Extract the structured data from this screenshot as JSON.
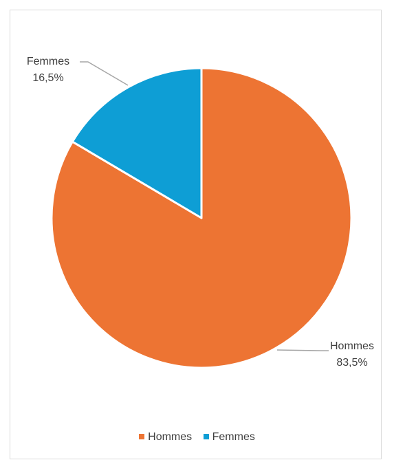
{
  "chart_data": {
    "type": "pie",
    "title": "",
    "slices": [
      {
        "name": "Hommes",
        "value": 83.5,
        "label": "Hommes",
        "value_label": "83,5%",
        "color": "#ED7433"
      },
      {
        "name": "Femmes",
        "value": 16.5,
        "label": "Femmes",
        "value_label": "16,5%",
        "color": "#0E9ED5"
      }
    ],
    "legend_position": "bottom",
    "start_angle_deg": 0,
    "direction": "clockwise"
  },
  "legend": {
    "items": [
      {
        "label": "Hommes",
        "color": "#ED7433"
      },
      {
        "label": "Femmes",
        "color": "#0E9ED5"
      }
    ]
  }
}
